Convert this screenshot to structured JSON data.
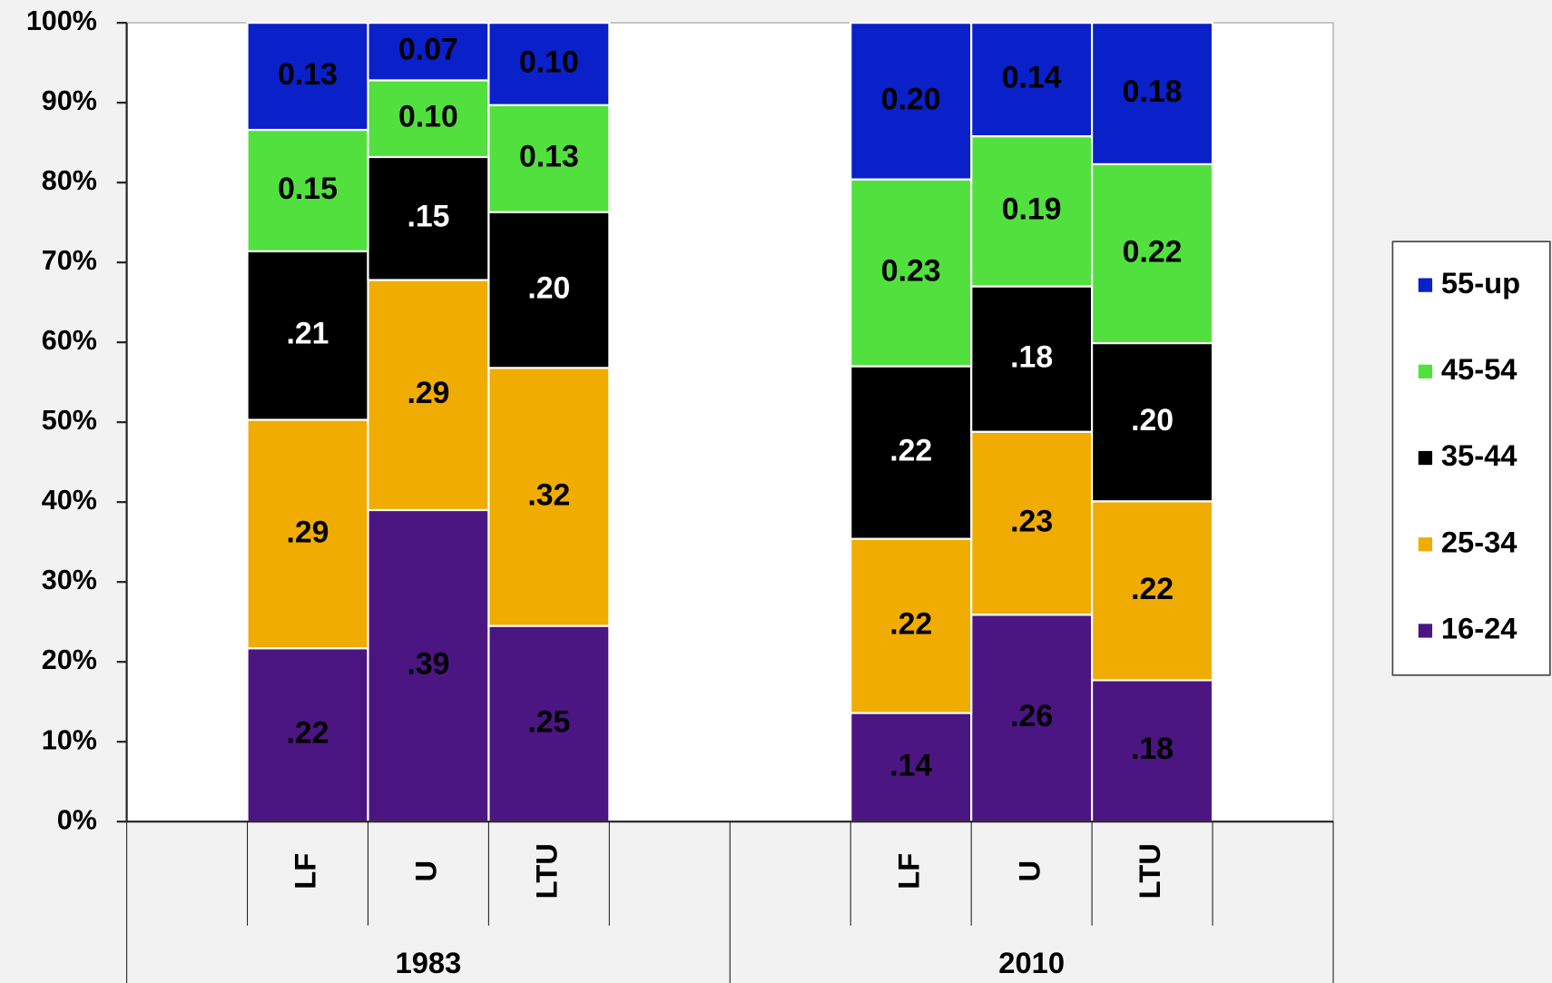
{
  "chart_data": {
    "type": "stacked_bar",
    "categories": [
      null,
      "LF",
      "U",
      "LTU",
      null,
      null,
      "LF",
      "U",
      "LTU",
      null
    ],
    "group_labels": [
      "1983",
      "2010"
    ],
    "series": [
      {
        "name": "16-24",
        "color": "#4b1582",
        "values": [
          null,
          21.7,
          39.0,
          24.5,
          null,
          null,
          13.6,
          25.9,
          17.7,
          null
        ],
        "value_labels": [
          null,
          ".22",
          ".39",
          ".25",
          null,
          null,
          ".14",
          ".26",
          ".18",
          null
        ]
      },
      {
        "name": "25-34",
        "color": "#f0ac00",
        "values": [
          null,
          28.6,
          28.8,
          32.3,
          null,
          null,
          21.8,
          22.9,
          22.4,
          null
        ],
        "value_labels": [
          null,
          ".29",
          ".29",
          ".32",
          null,
          null,
          ".22",
          ".23",
          ".22",
          null
        ]
      },
      {
        "name": "35-44",
        "color": "#000000",
        "values": [
          null,
          21.1,
          15.4,
          19.5,
          null,
          null,
          21.6,
          18.2,
          19.8,
          null
        ],
        "value_labels": [
          null,
          ".21",
          ".15",
          ".20",
          null,
          null,
          ".22",
          ".18",
          ".20",
          null
        ]
      },
      {
        "name": "45-54",
        "color": "#52e03e",
        "values": [
          null,
          15.2,
          9.6,
          13.4,
          null,
          null,
          23.4,
          18.8,
          22.4,
          null
        ],
        "value_labels": [
          null,
          "0.15",
          "0.10",
          "0.13",
          null,
          null,
          "0.23",
          "0.19",
          "0.22",
          null
        ]
      },
      {
        "name": "55-up",
        "color": "#0a20c8",
        "values": [
          null,
          13.4,
          7.2,
          10.3,
          null,
          null,
          19.6,
          14.2,
          17.7,
          null
        ],
        "value_labels": [
          null,
          "0.13",
          "0.07",
          "0.10",
          null,
          null,
          "0.20",
          "0.14",
          "0.18",
          null
        ]
      }
    ],
    "ylim": [
      0,
      100
    ],
    "yticks": [
      {
        "value": 0,
        "label": "0%"
      },
      {
        "value": 10,
        "label": "10%"
      },
      {
        "value": 20,
        "label": "20%"
      },
      {
        "value": 30,
        "label": "30%"
      },
      {
        "value": 40,
        "label": "40%"
      },
      {
        "value": 50,
        "label": "50%"
      },
      {
        "value": 60,
        "label": "60%"
      },
      {
        "value": 70,
        "label": "70%"
      },
      {
        "value": 80,
        "label": "80%"
      },
      {
        "value": 90,
        "label": "90%"
      },
      {
        "value": 100,
        "label": "100%"
      }
    ],
    "legend": "right"
  }
}
